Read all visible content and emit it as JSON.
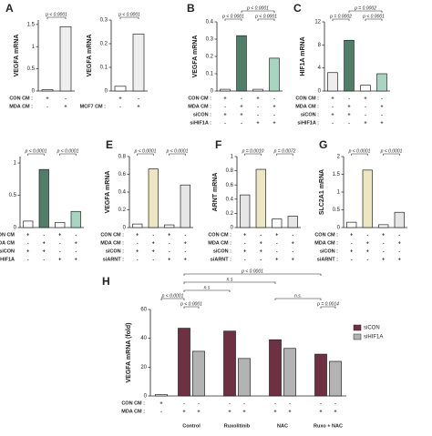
{
  "chart_data": [
    {
      "type": "bar",
      "panel": "A",
      "ylabel": "VEGFA mRNA",
      "values": [
        0.03,
        1.45
      ],
      "colors": [
        "#ffffff",
        "#eeeeee"
      ],
      "ylim": [
        0,
        1.6
      ],
      "yticks": [
        0,
        0.5,
        1,
        1.5
      ],
      "conditions": [
        {
          "label": "CON CM :",
          "signs": [
            "+",
            "-"
          ]
        },
        {
          "label": "MDA CM :",
          "signs": [
            "-",
            "+"
          ]
        }
      ],
      "pvalues": [
        {
          "label": "p < 0.0001",
          "from": 0,
          "to": 1
        }
      ]
    },
    {
      "type": "bar",
      "ylabel": "VEGFA mRNA",
      "values": [
        0.02,
        0.24
      ],
      "colors": [
        "#ffffff",
        "#eeeeee"
      ],
      "ylim": [
        0,
        0.3
      ],
      "yticks": [
        0,
        0.1,
        0.2,
        0.3
      ],
      "conditions": [
        {
          "signs": [
            "+",
            "-"
          ]
        },
        {
          "label": "MCF7 CM :",
          "signs": [
            "-",
            "+"
          ]
        }
      ],
      "pvalues": [
        {
          "label": "p < 0.0001",
          "from": 0,
          "to": 1
        }
      ]
    },
    {
      "type": "bar",
      "panel": "B",
      "ylabel": "VEGFA mRNA",
      "values": [
        0.01,
        0.32,
        0.01,
        0.19
      ],
      "colors": [
        "#ffffff",
        "#4f7f68",
        "#ffffff",
        "#a8d5c2"
      ],
      "ylim": [
        0,
        0.4
      ],
      "yticks": [
        0,
        0.1,
        0.2,
        0.3,
        0.4
      ],
      "conditions": [
        {
          "label": "CON CM :",
          "signs": [
            "+",
            "-",
            "+",
            "-"
          ]
        },
        {
          "label": "MDA CM :",
          "signs": [
            "-",
            "+",
            "-",
            "+"
          ]
        },
        {
          "label": "siCON :",
          "signs": [
            "+",
            "+",
            "-",
            "-"
          ]
        },
        {
          "label": "siHIF1A :",
          "signs": [
            "-",
            "-",
            "+",
            "+"
          ]
        }
      ],
      "pvalues": [
        {
          "label": "p < 0.0001",
          "from": 2,
          "to": 3
        },
        {
          "label": "p < 0.0001",
          "from": 0,
          "to": 1
        },
        {
          "label": "p < 0.0001",
          "from": 1,
          "to": 3
        }
      ]
    },
    {
      "type": "bar",
      "panel": "C",
      "ylabel": "HIF1A mRNA",
      "values": [
        3.2,
        8.8,
        1.0,
        3.0
      ],
      "colors": [
        "#eeeeee",
        "#4f7f68",
        "#ffffff",
        "#a8d5c2"
      ],
      "ylim": [
        0,
        12
      ],
      "yticks": [
        0,
        4,
        8,
        12
      ],
      "conditions": [
        {
          "label": "CON CM :",
          "signs": [
            "+",
            "-",
            "+",
            "-"
          ]
        },
        {
          "label": "MDA CM :",
          "signs": [
            "-",
            "+",
            "-",
            "+"
          ]
        },
        {
          "label": "siCON :",
          "signs": [
            "+",
            "+",
            "-",
            "-"
          ]
        },
        {
          "label": "siHIF1A :",
          "signs": [
            "-",
            "-",
            "+",
            "+"
          ]
        }
      ],
      "pvalues": [
        {
          "label": "p < 0.0001",
          "from": 2,
          "to": 3
        },
        {
          "label": "p = 0.0002",
          "from": 0,
          "to": 1
        },
        {
          "label": "p = 0.0002",
          "from": 1,
          "to": 3
        }
      ]
    },
    {
      "type": "bar",
      "values": [
        0.1,
        0.9,
        0.08,
        0.25
      ],
      "colors": [
        "#ffffff",
        "#4f7f68",
        "#ffffff",
        "#a8d5c2"
      ],
      "ylim": [
        0,
        1.1
      ],
      "yticks": [
        0,
        0.5,
        1
      ],
      "conditions": [
        {
          "label": "CON CM",
          "signs": [
            "+",
            "-",
            "+",
            "-"
          ]
        },
        {
          "label": "MDA CM",
          "signs": [
            "-",
            "+",
            "-",
            "+"
          ]
        },
        {
          "label": "siCON",
          "signs": [
            "+",
            "+",
            "-",
            "-"
          ]
        },
        {
          "label": "HIF1A",
          "signs": [
            "-",
            "-",
            "+",
            "+"
          ]
        }
      ],
      "pvalues": [
        {
          "label": "p < 0.0001",
          "from": 0,
          "to": 1
        },
        {
          "label": "p < 0.0001",
          "from": 2,
          "to": 3
        }
      ]
    },
    {
      "type": "bar",
      "panel": "E",
      "ylabel": "VEGFA mRNA",
      "values": [
        0.04,
        0.66,
        0.03,
        0.48
      ],
      "colors": [
        "#ffffff",
        "#ece6c2",
        "#ffffff",
        "#e6e6e6"
      ],
      "ylim": [
        0,
        0.8
      ],
      "yticks": [
        0,
        0.2,
        0.4,
        0.6,
        0.8
      ],
      "conditions": [
        {
          "label": "CON CM :",
          "signs": [
            "+",
            "-",
            "+",
            "-"
          ]
        },
        {
          "label": "MDA CM :",
          "signs": [
            "-",
            "+",
            "-",
            "+"
          ]
        },
        {
          "label": "siCON :",
          "signs": [
            "+",
            "+",
            "-",
            "-"
          ]
        },
        {
          "label": "siARNT :",
          "signs": [
            "-",
            "-",
            "+",
            "+"
          ]
        }
      ],
      "pvalues": [
        {
          "label": "p < 0.0001",
          "from": 0,
          "to": 1
        },
        {
          "label": "p < 0.0001",
          "from": 2,
          "to": 3
        }
      ]
    },
    {
      "type": "bar",
      "panel": "F",
      "ylabel": "ARNT mRNA",
      "values": [
        0.46,
        0.82,
        0.12,
        0.16
      ],
      "colors": [
        "#e6e6e6",
        "#ece6c2",
        "#ffffff",
        "#e6e6e6"
      ],
      "ylim": [
        0,
        1
      ],
      "yticks": [
        0,
        0.2,
        0.4,
        0.6,
        0.8,
        1
      ],
      "conditions": [
        {
          "label": "CON CM :",
          "signs": [
            "+",
            "-",
            "+",
            "-"
          ]
        },
        {
          "label": "MDA CM :",
          "signs": [
            "-",
            "+",
            "-",
            "+"
          ]
        },
        {
          "label": "siCON :",
          "signs": [
            "+",
            "+",
            "-",
            "-"
          ]
        },
        {
          "label": "siARNT :",
          "signs": [
            "-",
            "-",
            "+",
            "+"
          ]
        }
      ],
      "pvalues": [
        {
          "label": "p = 0.0010",
          "from": 0,
          "to": 1
        },
        {
          "label": "p = 0.0072",
          "from": 2,
          "to": 3
        }
      ]
    },
    {
      "type": "bar",
      "panel": "G",
      "ylabel": "SLC2A1 mRNA",
      "values": [
        0.15,
        1.62,
        0.08,
        0.43
      ],
      "colors": [
        "#ffffff",
        "#ece6c2",
        "#ffffff",
        "#e6e6e6"
      ],
      "ylim": [
        0,
        2
      ],
      "yticks": [
        0,
        0.5,
        1,
        1.5,
        2
      ],
      "conditions": [
        {
          "label": "CON CM :",
          "signs": [
            "+",
            "-",
            "+",
            "-"
          ]
        },
        {
          "label": "MDA CM :",
          "signs": [
            "-",
            "+",
            "-",
            "+"
          ]
        },
        {
          "label": "siCON :",
          "signs": [
            "+",
            "+",
            "-",
            "-"
          ]
        },
        {
          "label": "siARNT :",
          "signs": [
            "-",
            "-",
            "+",
            "+"
          ]
        }
      ],
      "pvalues": [
        {
          "label": "p < 0.0001",
          "from": 0,
          "to": 1
        },
        {
          "label": "p < 0.0001",
          "from": 2,
          "to": 3
        }
      ]
    },
    {
      "type": "grouped_bar",
      "panel": "H",
      "ylabel": "VEGFA mRNA (fold)",
      "baseline_value": 1,
      "baseline_color": "#ffffff",
      "categories": [
        "Control",
        "Ruxolitinib",
        "NAC",
        "Ruxo + NAC"
      ],
      "series": [
        {
          "name": "siCON",
          "color": "#6e3143",
          "values": [
            47,
            45,
            39,
            29
          ]
        },
        {
          "name": "siHIF1A",
          "color": "#b3b3b3",
          "values": [
            31,
            26,
            33,
            24
          ]
        }
      ],
      "ylim": [
        0,
        60
      ],
      "yticks": [
        0,
        20,
        40,
        60
      ],
      "conditions": [
        {
          "label": "CON CM :",
          "signs": [
            "+",
            "-",
            "-",
            "-",
            "-",
            "-",
            "-",
            "-",
            "-"
          ]
        },
        {
          "label": "MDA CM :",
          "signs": [
            "-",
            "+",
            "+",
            "+",
            "+",
            "+",
            "+",
            "+",
            "+"
          ]
        }
      ],
      "pvalues": [
        {
          "label": "p < 0.0001",
          "from": 1,
          "to": 2
        },
        {
          "label": "p = 0.0014",
          "from": 7,
          "to": 8
        },
        {
          "label": "n.s.",
          "from": 5,
          "to": 7
        },
        {
          "label": "p < 0.0001",
          "from": 0,
          "to": 1
        },
        {
          "label": "n.s",
          "from": 1,
          "to": 3
        },
        {
          "label": "n.s",
          "from": 1,
          "to": 5
        },
        {
          "label": "p < 0.0001",
          "from": 1,
          "to": 7
        }
      ]
    }
  ]
}
